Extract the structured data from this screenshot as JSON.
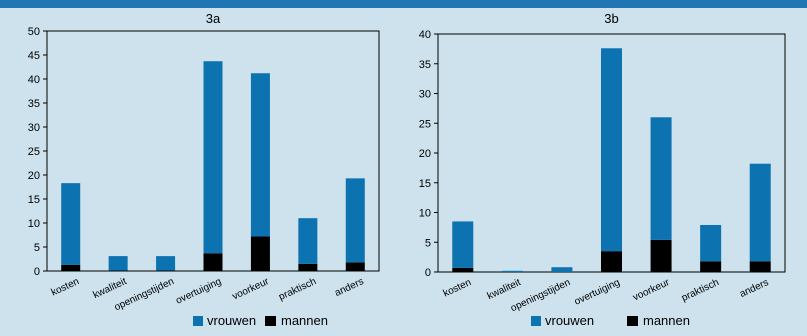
{
  "chart_data": [
    {
      "type": "bar",
      "title": "3a",
      "categories": [
        "kosten",
        "kwaliteit",
        "openingstijden",
        "overtuiging",
        "voorkeur",
        "praktisch",
        "anders"
      ],
      "series": [
        {
          "name": "vrouwen",
          "values": [
            17.0,
            3.0,
            3.0,
            40.0,
            34.0,
            9.5,
            17.5
          ]
        },
        {
          "name": "mannen",
          "values": [
            1.3,
            0.1,
            0.1,
            3.7,
            7.2,
            1.5,
            1.8
          ]
        }
      ],
      "stacked": true,
      "ylim": [
        0,
        50
      ],
      "yticks": [
        "0",
        "5",
        "10",
        "15",
        "20",
        "25",
        "30",
        "35",
        "40",
        "45",
        "50"
      ],
      "colors": {
        "vrouwen": "#0c72b0",
        "mannen": "#000000"
      },
      "legend": "bottom"
    },
    {
      "type": "bar",
      "title": "3b",
      "categories": [
        "kosten",
        "kwaliteit",
        "openingstijden",
        "overtuiging",
        "voorkeur",
        "praktisch",
        "anders"
      ],
      "series": [
        {
          "name": "vrouwen",
          "values": [
            7.8,
            0.2,
            0.8,
            34.1,
            20.6,
            6.1,
            16.4
          ]
        },
        {
          "name": "mannen",
          "values": [
            0.7,
            0.0,
            0.0,
            3.5,
            5.4,
            1.8,
            1.8
          ]
        }
      ],
      "stacked": true,
      "ylim": [
        0,
        40
      ],
      "yticks": [
        "0",
        "5",
        "10",
        "15",
        "20",
        "25",
        "30",
        "35",
        "40"
      ],
      "colors": {
        "vrouwen": "#0c72b0",
        "mannen": "#000000"
      },
      "legend": "bottom"
    }
  ]
}
